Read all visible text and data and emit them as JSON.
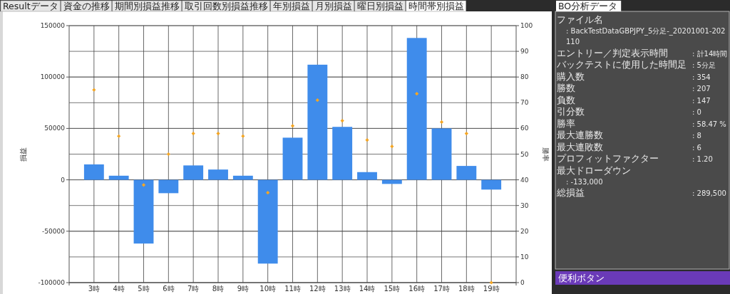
{
  "chart_data": [
    {
      "type": "bar",
      "ylabel": "損益",
      "y2label": "勝率",
      "grid": true,
      "marker": "diamond",
      "categories": [
        "3時",
        "4時",
        "5時",
        "6時",
        "7時",
        "8時",
        "9時",
        "10時",
        "11時",
        "12時",
        "13時",
        "14時",
        "15時",
        "16時",
        "17時",
        "18時",
        "19時"
      ],
      "series": [
        {
          "type": "bar",
          "color": "#3f8ceb",
          "values": [
            15000,
            4000,
            -62000,
            -13000,
            14000,
            10000,
            4000,
            -81500,
            41000,
            112000,
            51500,
            7500,
            -4000,
            138000,
            50000,
            13500,
            -9500
          ]
        },
        {
          "type": "scatter",
          "axis": "y2",
          "color": "#f5a623",
          "values": [
            75,
            57,
            38,
            50,
            58,
            58,
            57,
            35,
            61,
            71,
            63,
            55.5,
            53,
            73.5,
            62.5,
            58,
            0
          ]
        }
      ],
      "ylim": [
        -100000,
        150000
      ],
      "yticks": [
        -100000,
        -50000,
        0,
        50000,
        100000,
        150000
      ],
      "y2lim": [
        0,
        100
      ],
      "y2ticks": [
        0,
        10,
        20,
        30,
        40,
        50,
        60,
        70,
        80,
        90,
        100
      ]
    },
    {
      "type": "other",
      "annotations": [
        "Resultデータ",
        "資金の推移",
        "期間別損益推移",
        "取引回数別損益推移",
        "年別損益",
        "月別損益",
        "曜日別損益",
        "時間帯別損益"
      ]
    },
    {
      "type": "other",
      "title": "BO分析データ",
      "annotations": [
        "ファイル名",
        ": BackTestDataGBPJPY_5分足-_20201001-202110",
        "エントリー／判定表示時間",
        ": 計14時間",
        "バックテストに使用した時間足",
        ": 5分足",
        "購入数",
        ": 354",
        "勝数",
        ": 207",
        "負数",
        ": 147",
        "引分数",
        ": 0",
        "勝率",
        ": 58.47 %",
        "最大連勝数",
        ": 8",
        "最大連敗数",
        ": 6",
        "プロフィットファクター",
        ": 1.20",
        "最大ドローダウン",
        ": -133,000",
        "総損益",
        ": 289,500"
      ]
    },
    {
      "type": "other",
      "title": "便利ボタン"
    }
  ]
}
